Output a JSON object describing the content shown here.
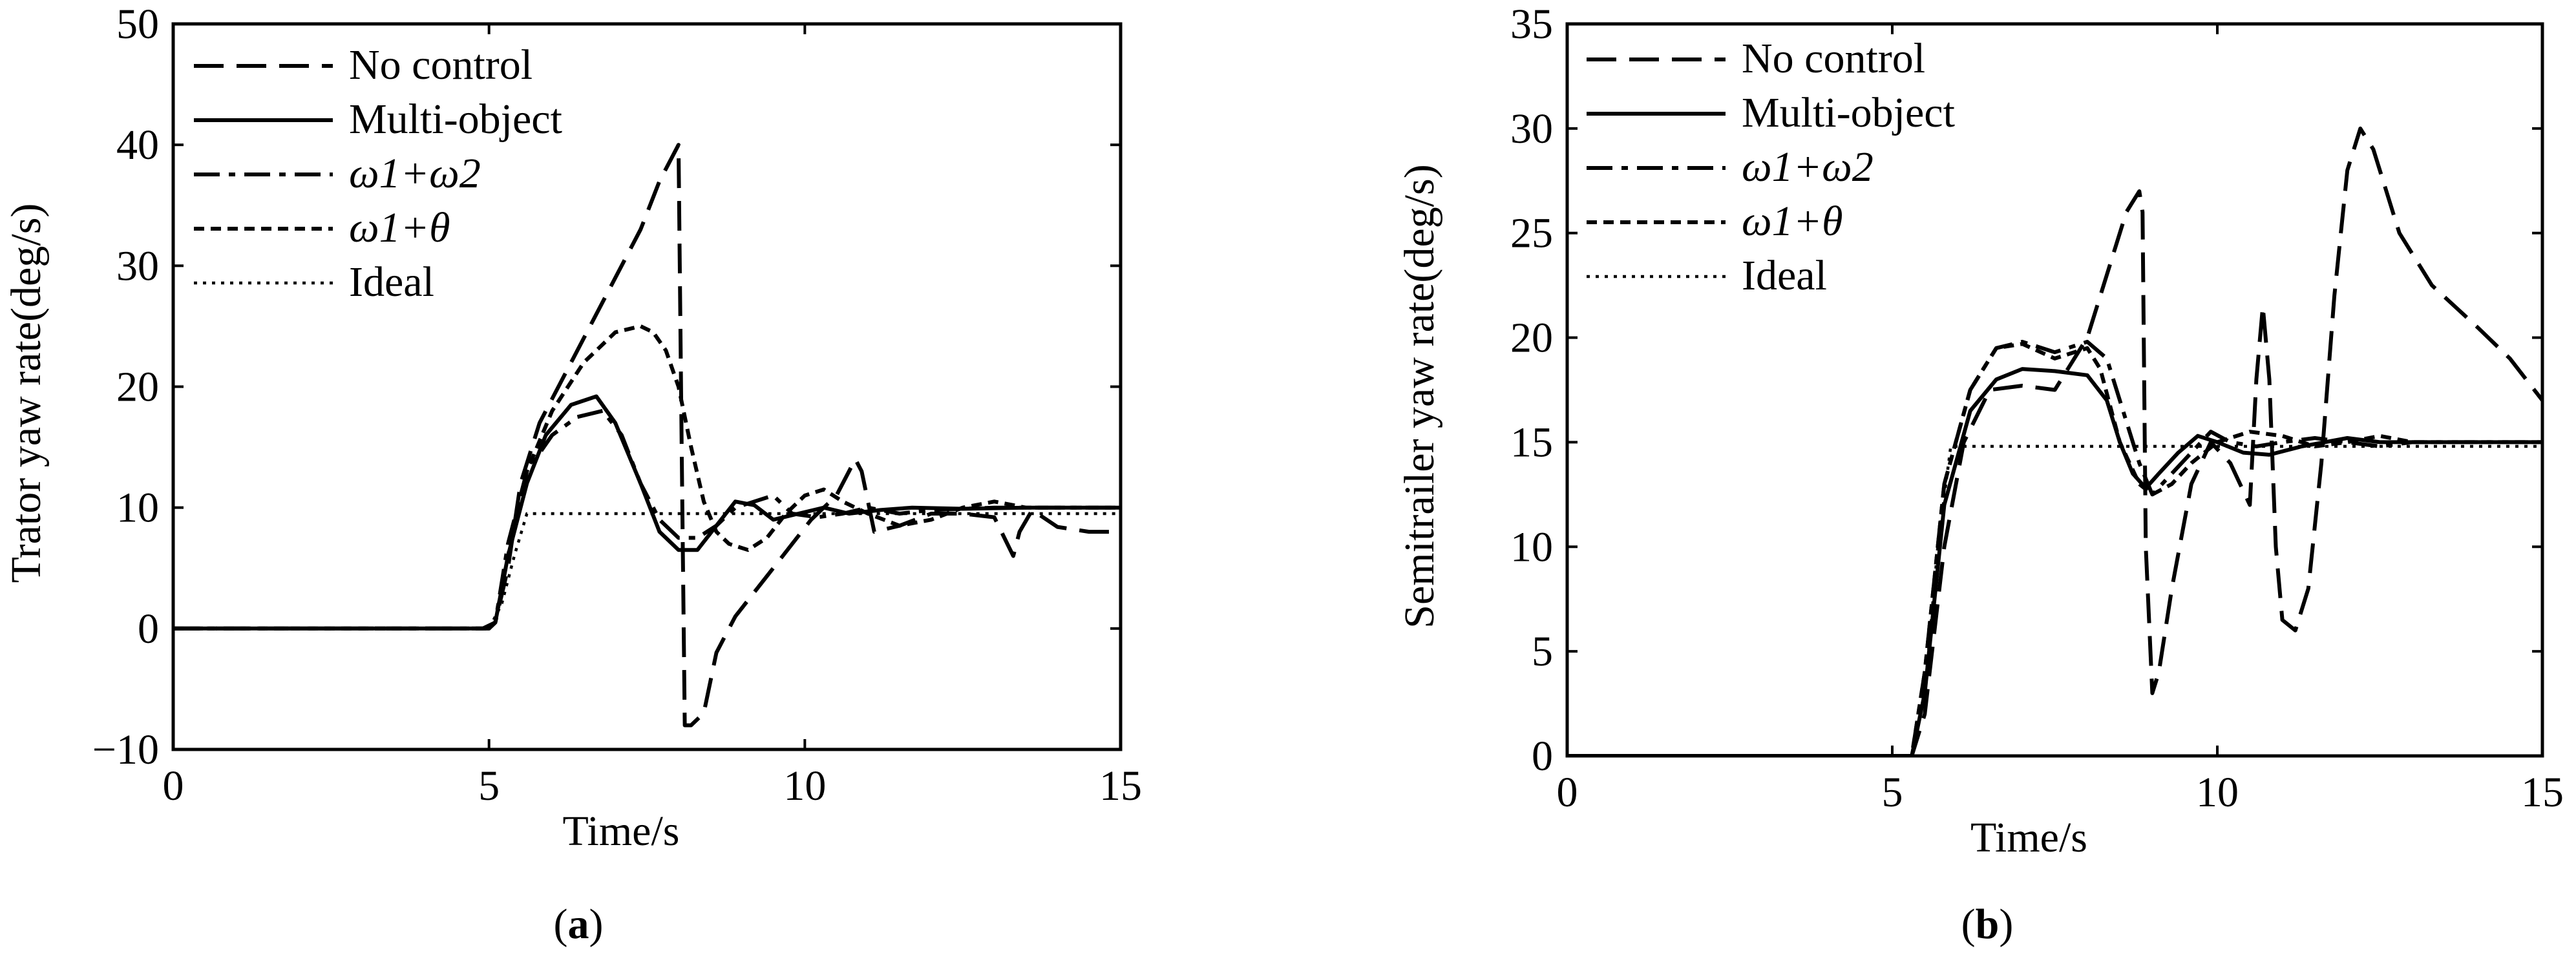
{
  "figure": {
    "captions": [
      "(a)",
      "(b)"
    ],
    "caption_letters": [
      "a",
      "b"
    ]
  },
  "chart_data": [
    {
      "type": "line",
      "caption": "(a)",
      "xlabel": "Time/s",
      "ylabel": "Trator yaw rate(deg/s)",
      "xlim": [
        0,
        15
      ],
      "ylim": [
        -10,
        50
      ],
      "xticks": [
        0,
        5,
        10,
        15
      ],
      "yticks": [
        -10,
        0,
        10,
        20,
        30,
        40,
        50
      ],
      "grid": false,
      "legend_position": "top-left",
      "series": [
        {
          "name": "No control",
          "dash": "long-dash",
          "x": [
            0,
            4.9,
            5.1,
            5.3,
            5.5,
            5.8,
            6.2,
            6.6,
            7.0,
            7.4,
            7.7,
            7.9,
            8.0,
            8.05,
            8.1,
            8.2,
            8.4,
            8.6,
            8.9,
            9.2,
            9.5,
            9.8,
            10.1,
            10.5,
            10.8,
            10.9,
            11.1,
            11.5,
            12.0,
            12.5,
            13.0,
            13.3,
            13.4,
            13.6,
            14.0,
            14.5,
            15
          ],
          "y": [
            0,
            0,
            0.5,
            5,
            12,
            17,
            21,
            25,
            29,
            33,
            37,
            39,
            40,
            15,
            -8,
            -8,
            -7,
            -2,
            1,
            3,
            5,
            7,
            9,
            11,
            14,
            13,
            8,
            8.5,
            9.5,
            9.5,
            9.2,
            6,
            8,
            9.8,
            8.4,
            8,
            8
          ]
        },
        {
          "name": "Multi-object",
          "dash": "solid",
          "x": [
            0,
            5.0,
            5.1,
            5.3,
            5.6,
            5.9,
            6.3,
            6.7,
            7.0,
            7.4,
            7.7,
            8.0,
            8.3,
            8.6,
            8.9,
            9.2,
            9.5,
            9.9,
            10.3,
            10.7,
            11.2,
            11.7,
            12.5,
            13.5,
            15
          ],
          "y": [
            0,
            0,
            0.5,
            6,
            12,
            16,
            18.5,
            19.2,
            17,
            12,
            8,
            6.5,
            6.5,
            8.5,
            10.5,
            10.2,
            9,
            9.5,
            10,
            9.5,
            9.8,
            10,
            9.9,
            10,
            10
          ]
        },
        {
          "name": "ω1+ω2",
          "dash": "dash-dot",
          "x": [
            0,
            5.0,
            5.1,
            5.3,
            5.6,
            6.0,
            6.4,
            6.8,
            7.1,
            7.4,
            7.7,
            8.0,
            8.3,
            8.6,
            8.9,
            9.2,
            9.5,
            9.8,
            10.2,
            10.6,
            11.0,
            11.5,
            12.0,
            13.0,
            14.0,
            15
          ],
          "y": [
            0,
            0,
            0.5,
            7,
            13,
            16,
            17.5,
            18,
            16,
            12,
            9,
            7.5,
            7.5,
            8.5,
            10,
            10.5,
            11,
            9.5,
            9.2,
            9.5,
            10,
            9.5,
            9.8,
            10,
            10,
            10
          ]
        },
        {
          "name": "ω1+θ",
          "dash": "short-dash",
          "x": [
            0,
            5.0,
            5.1,
            5.3,
            5.6,
            6.0,
            6.5,
            7.0,
            7.4,
            7.6,
            7.8,
            8.0,
            8.2,
            8.4,
            8.6,
            8.8,
            9.1,
            9.4,
            9.7,
            10.0,
            10.3,
            10.6,
            11.0,
            11.5,
            12.0,
            12.5,
            13.0,
            13.5,
            14.0,
            15
          ],
          "y": [
            0,
            0,
            0.5,
            6,
            13,
            18,
            22,
            24.5,
            25,
            24.5,
            23,
            20,
            15,
            10.5,
            8,
            7,
            6.5,
            7.5,
            9.5,
            11,
            11.5,
            10.5,
            9.5,
            8.5,
            9,
            10,
            10.5,
            10,
            10,
            10
          ]
        },
        {
          "name": "Ideal",
          "dash": "dotted",
          "x": [
            0,
            5.0,
            5.2,
            5.4,
            5.6,
            15
          ],
          "y": [
            0,
            0,
            2,
            6,
            9.5,
            9.5
          ]
        }
      ]
    },
    {
      "type": "line",
      "caption": "(b)",
      "xlabel": "Time/s",
      "ylabel": "Semitrailer yaw rate(deg/s)",
      "xlim": [
        0,
        15
      ],
      "ylim": [
        0,
        35
      ],
      "xticks": [
        0,
        5,
        10,
        15
      ],
      "yticks": [
        0,
        5,
        10,
        15,
        20,
        25,
        30,
        35
      ],
      "grid": false,
      "legend_position": "top-left",
      "series": [
        {
          "name": "No control",
          "dash": "long-dash",
          "x": [
            0,
            5.3,
            5.5,
            5.8,
            6.1,
            6.5,
            7.0,
            7.5,
            8.0,
            8.3,
            8.6,
            8.8,
            8.85,
            8.9,
            9.0,
            9.1,
            9.3,
            9.6,
            9.9,
            10.2,
            10.5,
            10.6,
            10.7,
            10.8,
            10.9,
            11.0,
            11.2,
            11.4,
            11.6,
            11.8,
            12.0,
            12.2,
            12.4,
            12.8,
            13.3,
            14.0,
            14.5,
            15
          ],
          "y": [
            0,
            0,
            2,
            10,
            15,
            17.5,
            17.7,
            17.5,
            20,
            23,
            26,
            27,
            26,
            10,
            3,
            4,
            8,
            13,
            15,
            14,
            12,
            18,
            21.5,
            18,
            10,
            6.5,
            6,
            8,
            14,
            22,
            28,
            30,
            29,
            25,
            22.5,
            20.5,
            19,
            17
          ]
        },
        {
          "name": "Multi-object",
          "dash": "solid",
          "x": [
            0,
            5.3,
            5.5,
            5.8,
            6.2,
            6.6,
            7.0,
            7.5,
            8.0,
            8.3,
            8.5,
            8.7,
            8.9,
            9.1,
            9.4,
            9.7,
            10.0,
            10.4,
            10.8,
            11.3,
            12.0,
            12.5,
            13.0,
            14.0,
            15
          ],
          "y": [
            0,
            0,
            3,
            12,
            16.5,
            18,
            18.5,
            18.4,
            18.2,
            17,
            15,
            13.5,
            12.8,
            13.5,
            14.5,
            15.3,
            15,
            14.5,
            14.4,
            14.8,
            15.2,
            15,
            15,
            15,
            15
          ]
        },
        {
          "name": "ω1+ω2",
          "dash": "dash-dot",
          "x": [
            0,
            5.3,
            5.5,
            5.8,
            6.2,
            6.6,
            7.0,
            7.5,
            8.0,
            8.3,
            8.6,
            8.8,
            9.0,
            9.3,
            9.6,
            9.9,
            10.2,
            10.6,
            11.0,
            11.5,
            12.0,
            12.5,
            13.0,
            14.0,
            15
          ],
          "y": [
            0,
            0,
            4,
            13,
            17.5,
            19.5,
            19.8,
            19.3,
            19.8,
            19,
            16,
            14,
            12.5,
            13.5,
            14.5,
            15.5,
            15,
            14.8,
            15,
            15.2,
            15,
            14.8,
            15,
            15,
            15
          ]
        },
        {
          "name": "ω1+θ",
          "dash": "short-dash",
          "x": [
            0,
            5.3,
            5.5,
            5.8,
            6.2,
            6.6,
            7.0,
            7.5,
            8.0,
            8.2,
            8.5,
            8.8,
            9.0,
            9.3,
            9.6,
            10.0,
            10.5,
            11.0,
            11.5,
            12.0,
            12.5,
            13.0,
            14.0,
            15
          ],
          "y": [
            0,
            0,
            4,
            13,
            17.5,
            19.5,
            19.7,
            19,
            19.5,
            18.5,
            15,
            13,
            12.5,
            13,
            14,
            15,
            15.5,
            15.3,
            14.8,
            15,
            15.3,
            15,
            15,
            15
          ]
        },
        {
          "name": "Ideal",
          "dash": "dotted",
          "x": [
            0,
            5.3,
            5.5,
            5.7,
            5.9,
            15
          ],
          "y": [
            0,
            0,
            3,
            10,
            14.8,
            14.8
          ]
        }
      ]
    }
  ]
}
